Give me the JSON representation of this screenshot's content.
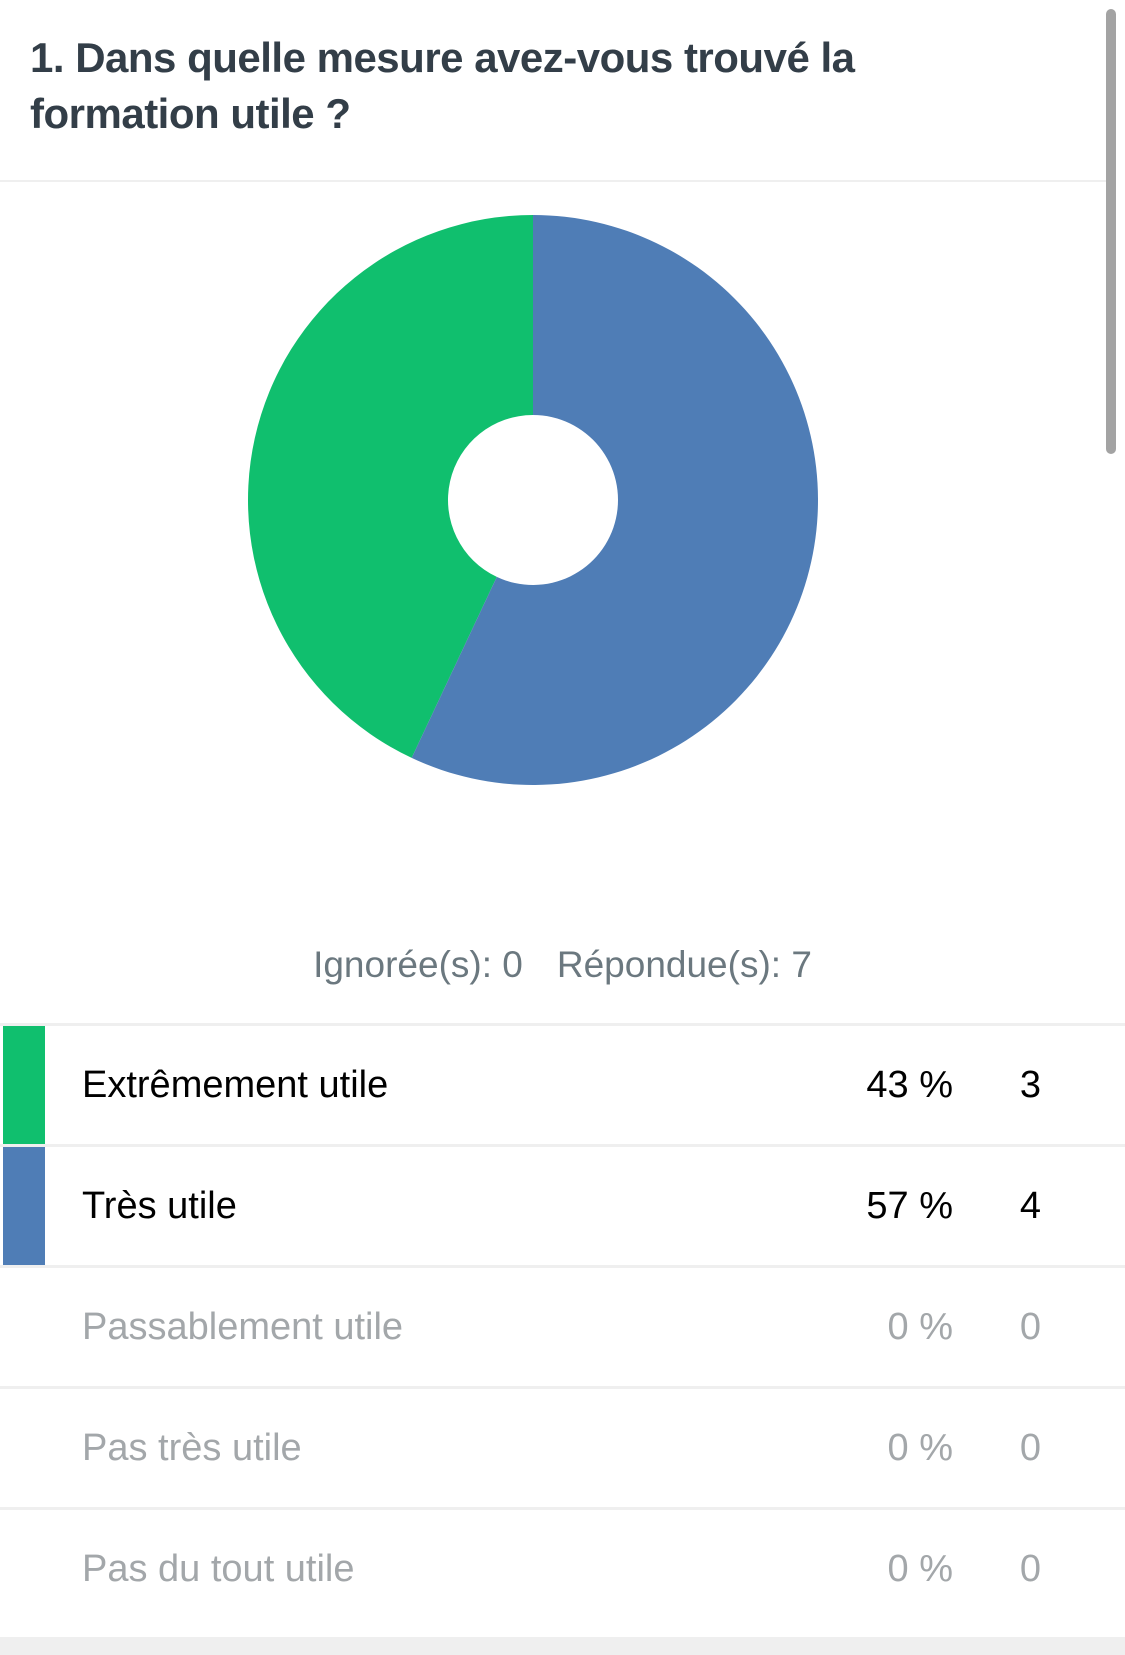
{
  "question": {
    "title": "1. Dans quelle mesure avez-vous trouvé la formation utile ?"
  },
  "summary": {
    "skipped_label": "Ignorée(s): 0",
    "answered_label": "Répondue(s): 7"
  },
  "colors": {
    "green": "#10bf6e",
    "blue": "#4f7db6",
    "title_text": "#333e48",
    "muted_text": "#a3a7aa",
    "divider": "#efefef"
  },
  "answers": [
    {
      "label": "Extrêmement utile",
      "percent": "43 %",
      "count": "3",
      "color": "#10bf6e",
      "muted": false
    },
    {
      "label": "Très utile",
      "percent": "57 %",
      "count": "4",
      "color": "#4f7db6",
      "muted": false
    },
    {
      "label": "Passablement utile",
      "percent": "0 %",
      "count": "0",
      "color": "",
      "muted": true
    },
    {
      "label": "Pas très utile",
      "percent": "0 %",
      "count": "0",
      "color": "",
      "muted": true
    },
    {
      "label": "Pas du tout utile",
      "percent": "0 %",
      "count": "0",
      "color": "",
      "muted": true
    }
  ],
  "chart_data": {
    "type": "pie",
    "variant": "donut",
    "title": "1. Dans quelle mesure avez-vous trouvé la formation utile ?",
    "categories": [
      "Extrêmement utile",
      "Très utile",
      "Passablement utile",
      "Pas très utile",
      "Pas du tout utile"
    ],
    "values": [
      43,
      57,
      0,
      0,
      0
    ],
    "counts": [
      3,
      4,
      0,
      0,
      0
    ],
    "colors": [
      "#10bf6e",
      "#4f7db6"
    ],
    "total_answered": 7,
    "total_skipped": 0,
    "legend_position": "below (table)"
  }
}
